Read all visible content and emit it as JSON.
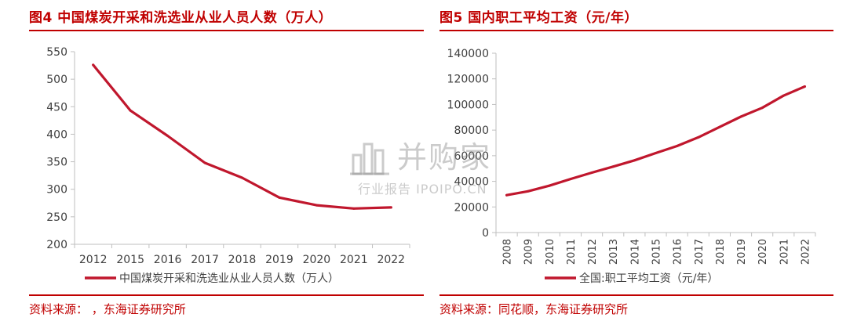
{
  "figures": [
    {
      "title": "图4  中国煤炭开采和洗选业从业人员人数（万人）",
      "source": "资料来源：        ，东海证券研究所"
    },
    {
      "title": "图5  国内职工平均工资（元/年）",
      "source": "资料来源：同花顺，东海证券研究所"
    }
  ],
  "watermark": {
    "main": "并购家",
    "sub": "行业报告 IPOIPO.CN"
  },
  "colors": {
    "accent": "#c00000",
    "series": "#c0172d",
    "axis": "#bfbfbf",
    "text": "#404040"
  },
  "chart_data": [
    {
      "type": "line",
      "title": "中国煤炭开采和洗选业从业人员人数（万人）",
      "categories": [
        "2012",
        "2015",
        "2016",
        "2017",
        "2018",
        "2019",
        "2020",
        "2021",
        "2022"
      ],
      "series": [
        {
          "name": "中国煤炭开采和洗选业从业人员人数（万人）",
          "values": [
            526,
            443,
            397,
            348,
            321,
            285,
            271,
            265,
            267
          ]
        }
      ],
      "ylim": [
        200,
        550
      ],
      "yticks": [
        "200",
        "250",
        "300",
        "350",
        "400",
        "450",
        "500",
        "550"
      ],
      "grid": false,
      "legend": "bottom"
    },
    {
      "type": "line",
      "title": "国内职工平均工资（元/年）",
      "categories": [
        "2008",
        "2009",
        "2010",
        "2011",
        "2012",
        "2013",
        "2014",
        "2015",
        "2016",
        "2017",
        "2018",
        "2019",
        "2020",
        "2021",
        "2022"
      ],
      "series": [
        {
          "name": "全国:职工平均工资（元/年）",
          "values": [
            29229,
            32244,
            36539,
            41799,
            46769,
            51483,
            56360,
            62029,
            67569,
            74318,
            82413,
            90501,
            97379,
            106837,
            114029
          ]
        }
      ],
      "ylim": [
        0,
        140000
      ],
      "yticks": [
        "0",
        "20000",
        "40000",
        "60000",
        "80000",
        "100000",
        "120000",
        "140000"
      ],
      "grid": false,
      "legend": "bottom"
    }
  ]
}
